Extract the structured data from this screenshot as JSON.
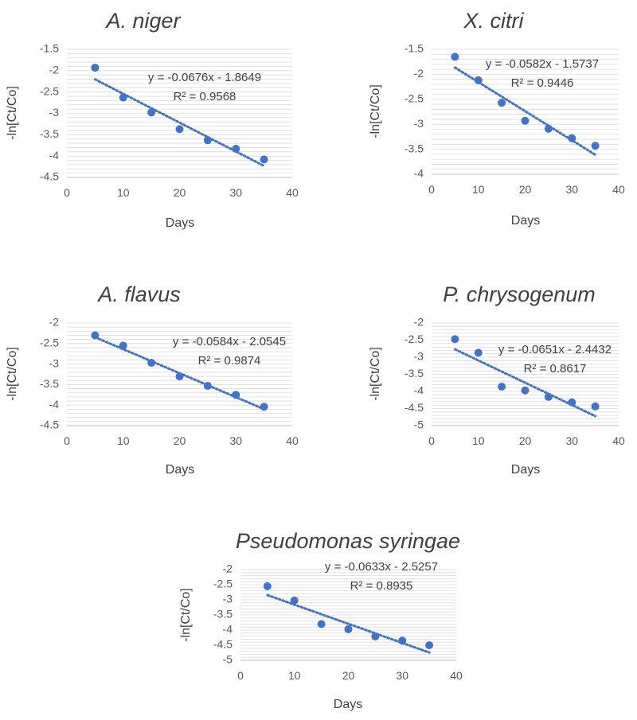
{
  "chart_data": [
    {
      "type": "scatter",
      "title": "A. niger",
      "xlabel": "Days",
      "ylabel": "-ln[Ct/Co]",
      "xlim": [
        0,
        40
      ],
      "ylim": [
        -4.5,
        -1.5
      ],
      "x_ticks": [
        "0",
        "10",
        "20",
        "30",
        "40"
      ],
      "y_ticks": [
        "-1.5",
        "-2",
        "-2.5",
        "-3",
        "-3.5",
        "-4",
        "-4.5"
      ],
      "x": [
        5,
        10,
        15,
        20,
        25,
        30,
        35
      ],
      "y": [
        -1.93,
        -2.63,
        -2.98,
        -3.37,
        -3.63,
        -3.83,
        -4.08
      ],
      "trendline": {
        "slope": -0.0676,
        "intercept": -1.8649,
        "x_range": [
          5,
          35
        ]
      },
      "equation": "y = -0.0676x - 1.8649",
      "r_squared": "R² = 0.9568"
    },
    {
      "type": "scatter",
      "title": "X. citri",
      "xlabel": "Days",
      "ylabel": "-ln[Ct/Co]",
      "xlim": [
        0,
        40
      ],
      "ylim": [
        -4,
        -1.5
      ],
      "x_ticks": [
        "0",
        "10",
        "20",
        "30",
        "40"
      ],
      "y_ticks": [
        "-1.5",
        "-2",
        "-2.5",
        "-3",
        "-3.5",
        "-4"
      ],
      "x": [
        5,
        10,
        15,
        20,
        25,
        30,
        35
      ],
      "y": [
        -1.65,
        -2.12,
        -2.57,
        -2.93,
        -3.09,
        -3.28,
        -3.43
      ],
      "trendline": {
        "slope": -0.0582,
        "intercept": -1.5737,
        "x_range": [
          5,
          35
        ]
      },
      "equation": "y = -0.0582x - 1.5737",
      "r_squared": "R² = 0.9446"
    },
    {
      "type": "scatter",
      "title": "A. flavus",
      "xlabel": "Days",
      "ylabel": "-ln[Ct/Co]",
      "xlim": [
        0,
        40
      ],
      "ylim": [
        -4.5,
        -2
      ],
      "x_ticks": [
        "0",
        "10",
        "20",
        "30",
        "40"
      ],
      "y_ticks": [
        "-2",
        "-2.5",
        "-3",
        "-3.5",
        "-4",
        "-4.5"
      ],
      "x": [
        5,
        10,
        15,
        20,
        25,
        30,
        35
      ],
      "y": [
        -2.3,
        -2.55,
        -2.97,
        -3.3,
        -3.53,
        -3.75,
        -4.04
      ],
      "trendline": {
        "slope": -0.0584,
        "intercept": -2.0545,
        "x_range": [
          5,
          35
        ]
      },
      "equation": "y = -0.0584x - 2.0545",
      "r_squared": "R² = 0.9874"
    },
    {
      "type": "scatter",
      "title": "P. chrysogenum",
      "xlabel": "Days",
      "ylabel": "-ln[Ct/Co]",
      "xlim": [
        0,
        40
      ],
      "ylim": [
        -5,
        -2
      ],
      "x_ticks": [
        "0",
        "10",
        "20",
        "30",
        "40"
      ],
      "y_ticks": [
        "-2",
        "-2.5",
        "-3",
        "-3.5",
        "-4",
        "-4.5",
        "-5"
      ],
      "x": [
        5,
        10,
        15,
        20,
        25,
        30,
        35
      ],
      "y": [
        -2.47,
        -2.87,
        -3.86,
        -3.97,
        -4.16,
        -4.32,
        -4.44
      ],
      "trendline": {
        "slope": -0.0651,
        "intercept": -2.4432,
        "x_range": [
          5,
          35
        ]
      },
      "equation": "y = -0.0651x - 2.4432",
      "r_squared": "R² = 0.8617"
    },
    {
      "type": "scatter",
      "title": "Pseudomonas syringae",
      "xlabel": "Days",
      "ylabel": "-ln[Ct/Co]",
      "xlim": [
        0,
        40
      ],
      "ylim": [
        -5,
        -2
      ],
      "x_ticks": [
        "0",
        "10",
        "20",
        "30",
        "40"
      ],
      "y_ticks": [
        "-2",
        "-2.5",
        "-3",
        "-3.5",
        "-4",
        "-4.5",
        "-5"
      ],
      "x": [
        5,
        10,
        15,
        20,
        25,
        30,
        35
      ],
      "y": [
        -2.55,
        -3.02,
        -3.8,
        -3.97,
        -4.21,
        -4.35,
        -4.5
      ],
      "trendline": {
        "slope": -0.0633,
        "intercept": -2.5257,
        "x_range": [
          5,
          35
        ]
      },
      "equation": "y = -0.0633x - 2.5257",
      "r_squared": "R² = 0.8935"
    }
  ],
  "colors": {
    "marker": "#4472c4",
    "trendline": "#4472c4",
    "gridline": "#d9d9d9",
    "axis": "#bfbfbf",
    "text": "#595959",
    "title": "#404040"
  }
}
